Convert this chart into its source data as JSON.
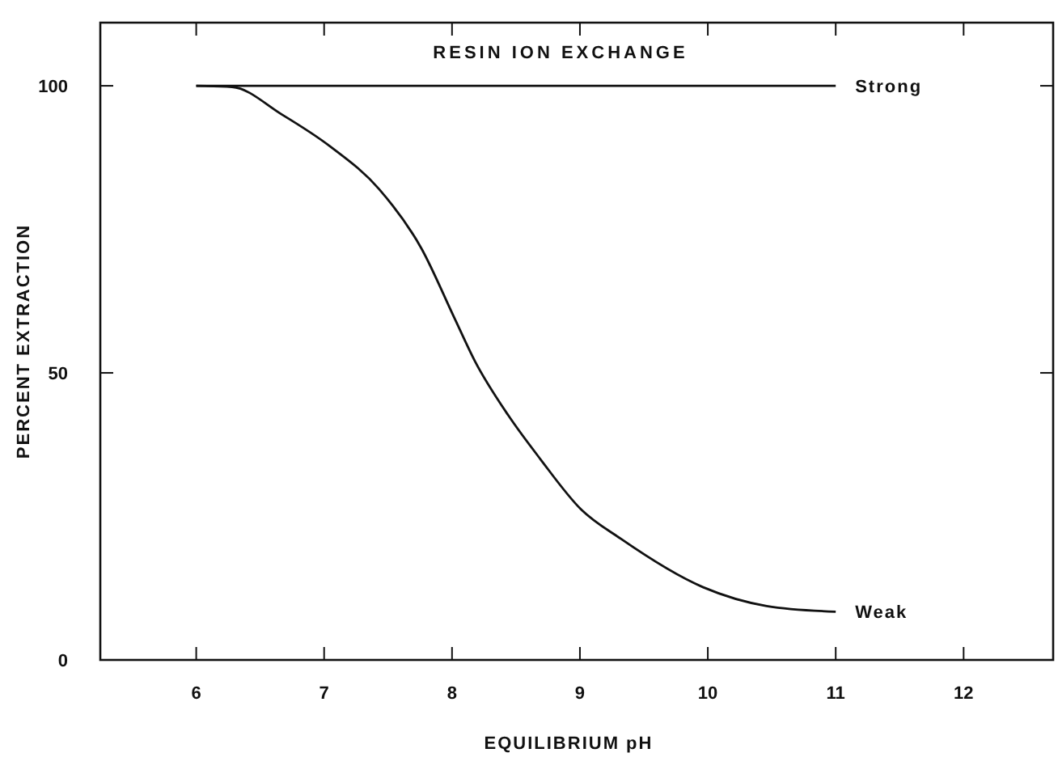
{
  "chart_data": {
    "type": "line",
    "title": "RESIN ION EXCHANGE",
    "xlabel": "EQUILIBRIUM pH",
    "ylabel": "PERCENT EXTRACTION",
    "xlim": [
      5.25,
      12.7
    ],
    "ylim": [
      0,
      111
    ],
    "xticks": [
      6,
      7,
      8,
      9,
      10,
      11,
      12
    ],
    "yticks": [
      0,
      50,
      100
    ],
    "grid": false,
    "marker": "none",
    "line_style": "solid",
    "series": [
      {
        "name": "Strong",
        "color": "#111111",
        "x": [
          6,
          11
        ],
        "values": [
          100,
          100
        ]
      },
      {
        "name": "Weak",
        "color": "#111111",
        "x": [
          6,
          6.28,
          6.67,
          7.05,
          7.43,
          7.76,
          8.02,
          8.18,
          8.44,
          8.69,
          9.01,
          9.32,
          9.96,
          10.46,
          11
        ],
        "values": [
          100,
          99.8,
          95,
          89.4,
          82,
          71.7,
          59.5,
          52,
          42.6,
          35,
          26.2,
          21.1,
          12.7,
          9.4,
          8.4
        ]
      }
    ]
  }
}
